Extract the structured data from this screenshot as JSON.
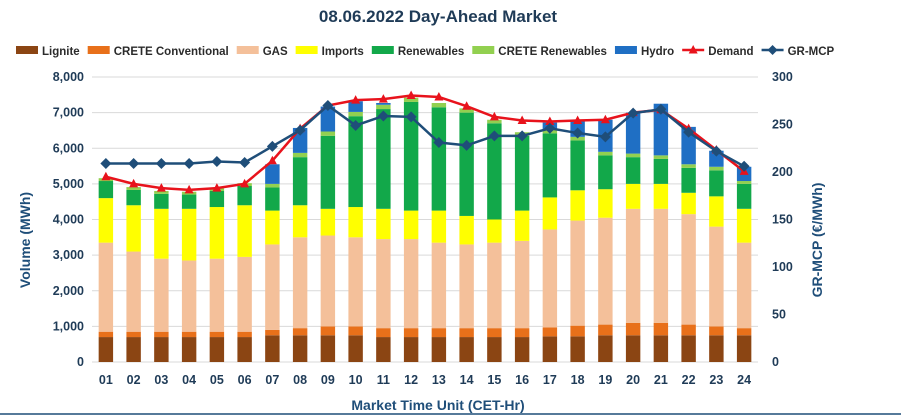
{
  "chart_data": {
    "type": "bar",
    "title": "08.06.2022  Day-Ahead Market",
    "xlabel": "Market Time Unit (CET-Hr)",
    "ylabel": "Volume (MWh)",
    "y2label": "GR-MCP (€/MWh)",
    "ylim": [
      0,
      8000
    ],
    "y2lim": [
      0,
      300
    ],
    "yticks": [
      "0",
      "1,000",
      "2,000",
      "3,000",
      "4,000",
      "5,000",
      "6,000",
      "7,000",
      "8,000"
    ],
    "y2ticks": [
      "0",
      "50",
      "100",
      "150",
      "200",
      "250",
      "300"
    ],
    "categories": [
      "01",
      "02",
      "03",
      "04",
      "05",
      "06",
      "07",
      "08",
      "09",
      "10",
      "11",
      "12",
      "13",
      "14",
      "15",
      "16",
      "17",
      "18",
      "19",
      "20",
      "21",
      "22",
      "23",
      "24"
    ],
    "series": [
      {
        "name": "Lignite",
        "type": "bar",
        "color": "#8b4513",
        "values": [
          700,
          700,
          700,
          700,
          700,
          700,
          750,
          750,
          750,
          750,
          700,
          700,
          700,
          700,
          700,
          700,
          720,
          720,
          750,
          750,
          750,
          750,
          750,
          750
        ]
      },
      {
        "name": "CRETE Conventional",
        "type": "bar",
        "color": "#e8701a",
        "values": [
          150,
          150,
          150,
          150,
          150,
          150,
          150,
          200,
          250,
          250,
          250,
          250,
          250,
          250,
          250,
          250,
          250,
          300,
          300,
          350,
          350,
          300,
          250,
          200
        ]
      },
      {
        "name": "GAS",
        "type": "bar",
        "color": "#f4c09a",
        "values": [
          2500,
          2250,
          2050,
          2000,
          2050,
          2100,
          2400,
          2550,
          2550,
          2500,
          2500,
          2500,
          2400,
          2350,
          2400,
          2450,
          2750,
          2950,
          3000,
          3200,
          3200,
          3100,
          2800,
          2400
        ]
      },
      {
        "name": "Imports",
        "type": "bar",
        "color": "#ffff00",
        "values": [
          1250,
          1300,
          1400,
          1450,
          1450,
          1450,
          950,
          900,
          750,
          850,
          850,
          800,
          900,
          800,
          650,
          850,
          900,
          850,
          800,
          700,
          700,
          600,
          850,
          950
        ]
      },
      {
        "name": "Renewables",
        "type": "bar",
        "color": "#12a84a",
        "values": [
          480,
          430,
          420,
          400,
          450,
          540,
          650,
          1350,
          2050,
          2550,
          2800,
          3050,
          2900,
          2900,
          2700,
          2100,
          1800,
          1400,
          950,
          750,
          700,
          700,
          730,
          700
        ]
      },
      {
        "name": "CRETE Renewables",
        "type": "bar",
        "color": "#92d050",
        "values": [
          80,
          80,
          80,
          80,
          80,
          80,
          100,
          120,
          120,
          120,
          120,
          120,
          120,
          120,
          100,
          100,
          100,
          100,
          100,
          100,
          100,
          100,
          100,
          80
        ]
      },
      {
        "name": "Hydro",
        "type": "bar",
        "color": "#1f6fc4",
        "values": [
          0,
          0,
          0,
          0,
          0,
          0,
          550,
          700,
          700,
          300,
          50,
          0,
          0,
          0,
          0,
          0,
          200,
          450,
          900,
          1150,
          1450,
          1050,
          450,
          400
        ]
      },
      {
        "name": "Demand",
        "type": "line",
        "axis": "y",
        "color": "#e8131c",
        "marker": "triangle",
        "values": [
          5200,
          5000,
          4880,
          4830,
          4880,
          5000,
          5650,
          6550,
          7200,
          7350,
          7380,
          7480,
          7440,
          7180,
          6880,
          6780,
          6750,
          6780,
          6800,
          7000,
          7080,
          6550,
          5950,
          5350
        ]
      },
      {
        "name": "GR-MCP",
        "type": "line",
        "axis": "y2",
        "color": "#1f4e79",
        "marker": "diamond",
        "values": [
          209,
          209,
          209,
          209,
          211,
          210,
          227,
          244,
          270,
          249,
          259,
          258,
          231,
          228,
          238,
          238,
          246,
          241,
          237,
          262,
          266,
          242,
          222,
          206
        ]
      }
    ]
  }
}
